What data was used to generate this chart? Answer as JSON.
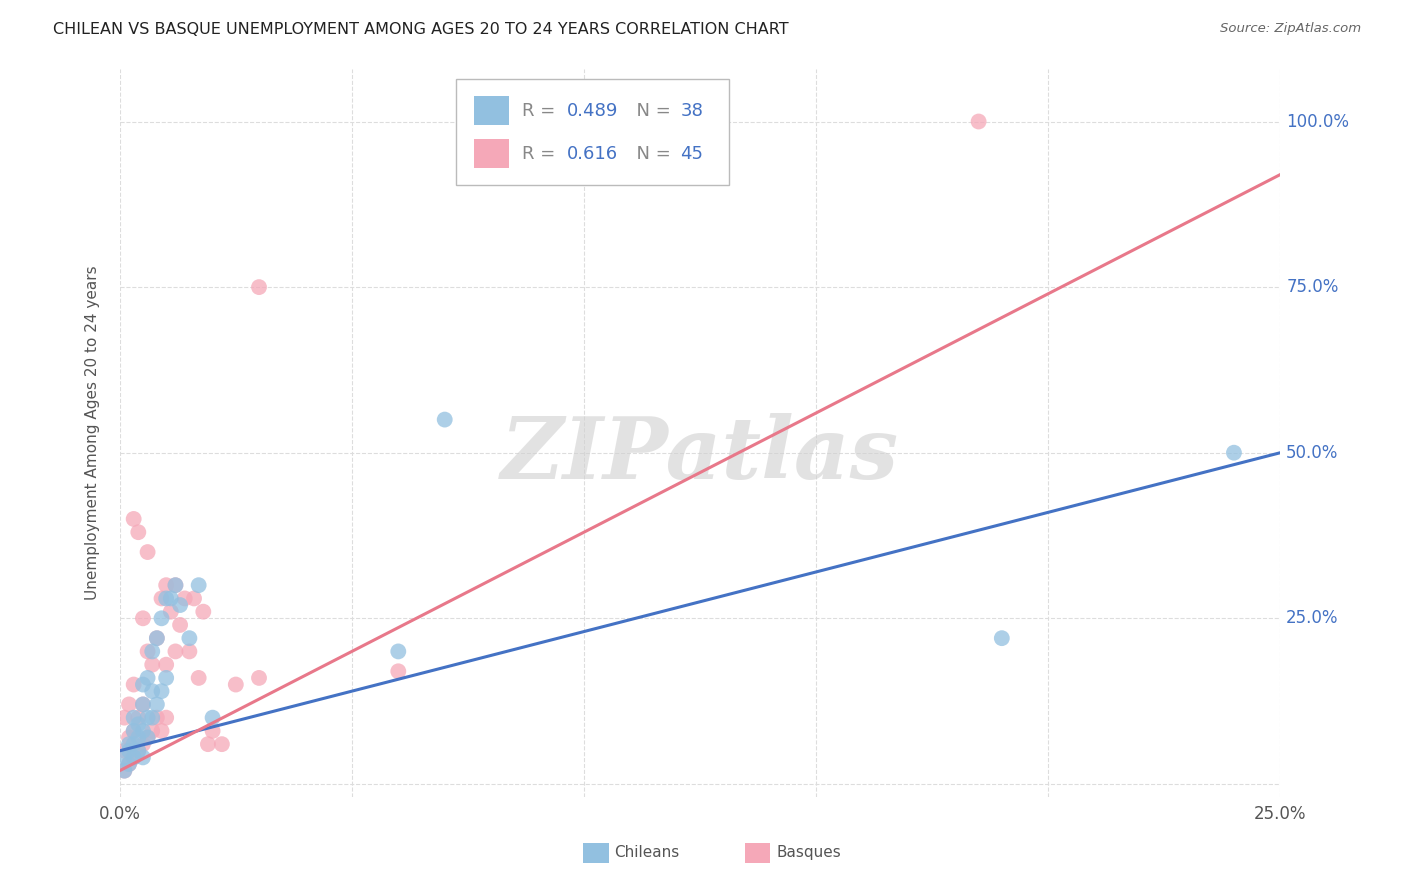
{
  "title": "CHILEAN VS BASQUE UNEMPLOYMENT AMONG AGES 20 TO 24 YEARS CORRELATION CHART",
  "source": "Source: ZipAtlas.com",
  "ylabel": "Unemployment Among Ages 20 to 24 years",
  "xlim": [
    0.0,
    0.25
  ],
  "ylim": [
    -0.02,
    1.08
  ],
  "xticks": [
    0.0,
    0.05,
    0.1,
    0.15,
    0.2,
    0.25
  ],
  "yticks": [
    0.0,
    0.25,
    0.5,
    0.75,
    1.0
  ],
  "background_color": "#ffffff",
  "grid_color": "#dddddd",
  "watermark": "ZIPatlas",
  "chilean_color": "#92c0e0",
  "basque_color": "#f5a8b8",
  "chilean_line_color": "#4472c4",
  "basque_line_color": "#e8788a",
  "chilean_R": "0.489",
  "chilean_N": "38",
  "basque_R": "0.616",
  "basque_N": "45",
  "legend_label_color": "#4472c4",
  "chilean_scatter_x": [
    0.001,
    0.001,
    0.002,
    0.002,
    0.002,
    0.003,
    0.003,
    0.003,
    0.003,
    0.004,
    0.004,
    0.004,
    0.005,
    0.005,
    0.005,
    0.005,
    0.006,
    0.006,
    0.006,
    0.007,
    0.007,
    0.007,
    0.008,
    0.008,
    0.009,
    0.009,
    0.01,
    0.01,
    0.011,
    0.012,
    0.013,
    0.015,
    0.017,
    0.02,
    0.06,
    0.07,
    0.19,
    0.24
  ],
  "chilean_scatter_y": [
    0.02,
    0.04,
    0.05,
    0.06,
    0.03,
    0.04,
    0.06,
    0.08,
    0.1,
    0.05,
    0.07,
    0.09,
    0.04,
    0.08,
    0.12,
    0.15,
    0.07,
    0.1,
    0.16,
    0.1,
    0.14,
    0.2,
    0.12,
    0.22,
    0.14,
    0.25,
    0.16,
    0.28,
    0.28,
    0.3,
    0.27,
    0.22,
    0.3,
    0.1,
    0.2,
    0.55,
    0.22,
    0.5
  ],
  "basque_scatter_x": [
    0.001,
    0.001,
    0.001,
    0.002,
    0.002,
    0.002,
    0.003,
    0.003,
    0.003,
    0.003,
    0.004,
    0.004,
    0.004,
    0.005,
    0.005,
    0.005,
    0.006,
    0.006,
    0.006,
    0.007,
    0.007,
    0.008,
    0.008,
    0.009,
    0.009,
    0.01,
    0.01,
    0.01,
    0.011,
    0.012,
    0.012,
    0.013,
    0.014,
    0.015,
    0.016,
    0.017,
    0.018,
    0.019,
    0.02,
    0.022,
    0.025,
    0.03,
    0.03,
    0.06,
    0.185
  ],
  "basque_scatter_y": [
    0.02,
    0.05,
    0.1,
    0.03,
    0.07,
    0.12,
    0.04,
    0.08,
    0.15,
    0.4,
    0.05,
    0.1,
    0.38,
    0.06,
    0.12,
    0.25,
    0.07,
    0.2,
    0.35,
    0.08,
    0.18,
    0.1,
    0.22,
    0.08,
    0.28,
    0.1,
    0.18,
    0.3,
    0.26,
    0.2,
    0.3,
    0.24,
    0.28,
    0.2,
    0.28,
    0.16,
    0.26,
    0.06,
    0.08,
    0.06,
    0.15,
    0.16,
    0.75,
    0.17,
    1.0
  ],
  "chilean_line_x0": 0.0,
  "chilean_line_y0": 0.05,
  "chilean_line_x1": 0.25,
  "chilean_line_y1": 0.5,
  "basque_line_x0": 0.0,
  "basque_line_y0": 0.02,
  "basque_line_x1": 0.25,
  "basque_line_y1": 0.92
}
